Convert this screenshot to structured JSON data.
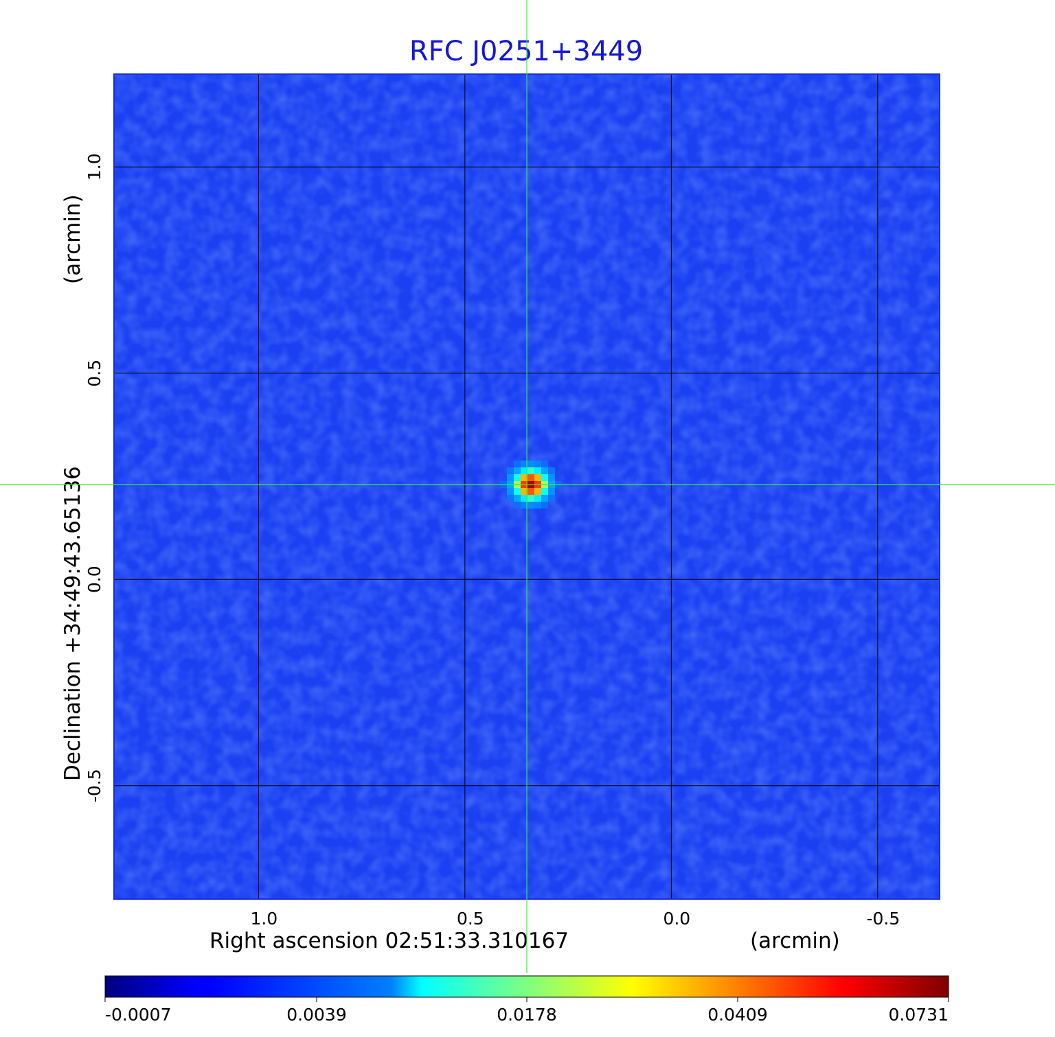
{
  "chart_data": {
    "type": "heatmap",
    "title": "RFC J0251+3449",
    "xlabel": "Right ascension  02:51:33.310167",
    "xunit": "(arcmin)",
    "ylabel": "Declination  +34:49:43.65136",
    "yunit": "(arcmin)",
    "xlim": [
      1.35,
      -0.65
    ],
    "ylim": [
      -0.775,
      1.225
    ],
    "x_ticks": [
      1.0,
      0.5,
      0.0,
      -0.5
    ],
    "y_ticks": [
      1.0,
      0.5,
      0.0,
      -0.5
    ],
    "x_tick_labels": [
      "1.0",
      "0.5",
      "0.0",
      "-0.5"
    ],
    "y_tick_labels": [
      "1.0",
      "0.5",
      "0.0",
      "-0.5"
    ],
    "grid": true,
    "crosshair": {
      "x": 0.35,
      "y": 0.23
    },
    "source_peak": {
      "x": 0.34,
      "y": 0.23,
      "value": 0.0731
    },
    "colorbar": {
      "ticks": [
        -0.0007,
        0.0039,
        0.0178,
        0.0409,
        0.0731
      ],
      "tick_labels": [
        "-0.0007",
        "0.0039",
        "0.0178",
        "0.0409",
        "0.0731"
      ],
      "colormap": "jet"
    },
    "colors": {
      "background": "#1a3cf0",
      "grid": "#000000",
      "crosshair": "#33ee33",
      "title": "#1515d6"
    }
  }
}
